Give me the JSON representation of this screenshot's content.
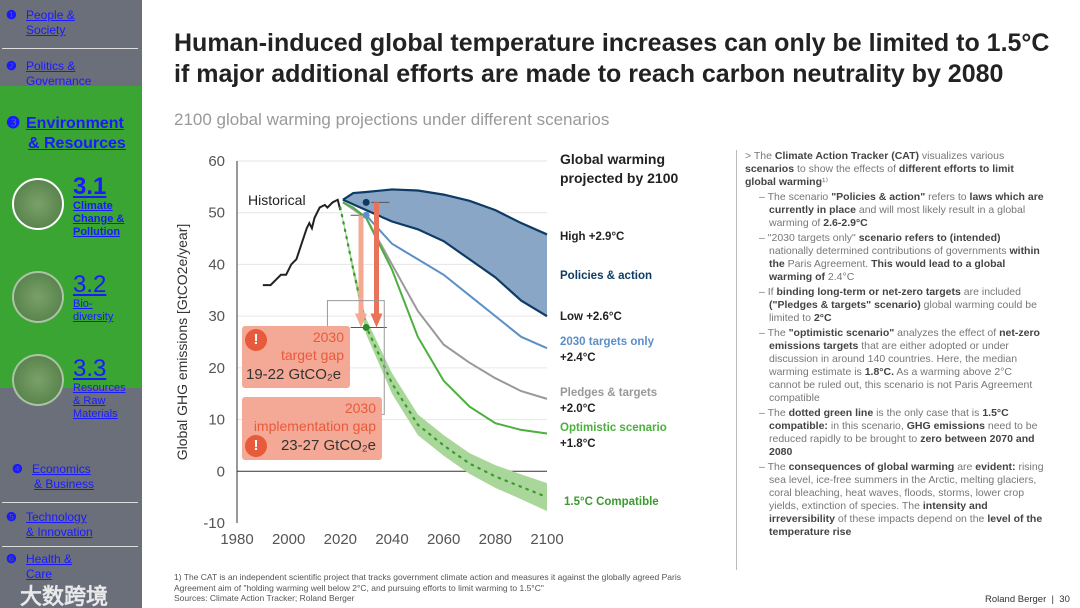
{
  "sidebar": {
    "items": [
      {
        "num": "❶",
        "label1": "People &",
        "label2": "Society"
      },
      {
        "num": "❷",
        "label1": "Politics &",
        "label2": "Governance"
      },
      {
        "num": "❸",
        "label1": "Environment",
        "label2": "& Resources"
      },
      {
        "num": "❹",
        "label1": "Economics",
        "label2": "& Business"
      },
      {
        "num": "❺",
        "label1": "Technology",
        "label2": "& Innovation"
      },
      {
        "num": "❻",
        "label1": "Health &",
        "label2": "Care"
      }
    ],
    "subitems": [
      {
        "num": "3.1",
        "label": "Climate Change & Pollution"
      },
      {
        "num": "3.2",
        "label": "Bio-diversity"
      },
      {
        "num": "3.3",
        "label": "Resources & Raw Materials"
      }
    ],
    "watermark": "大数跨境"
  },
  "title": "Human-induced global temperature increases can only be limited to 1.5°C if major additional efforts are made to reach carbon neutrality by 2080",
  "subtitle": "2100 global warming projections under different scenarios",
  "chart_data": {
    "type": "line",
    "ylabel": "Global GHG emissions [GtCO2e/year]",
    "xlim": [
      1980,
      2100
    ],
    "ylim": [
      -10,
      60
    ],
    "xticks": [
      1980,
      2000,
      2020,
      2040,
      2060,
      2080,
      2100
    ],
    "yticks": [
      60,
      50,
      40,
      30,
      20,
      10,
      0,
      -10
    ],
    "legend_title": "Global warming projected by 2100",
    "historical_label": "Historical",
    "series": [
      {
        "name": "Historical",
        "color": "#222222",
        "x": [
          1990,
          1993,
          1995,
          1997,
          1999,
          2001,
          2003,
          2005,
          2007,
          2008,
          2009,
          2010,
          2012,
          2014,
          2015,
          2017,
          2019,
          2020
        ],
        "y": [
          36,
          36,
          37,
          38,
          38,
          40,
          41,
          44,
          47,
          48,
          47,
          49,
          51,
          51.5,
          51,
          52,
          52.5,
          50.5
        ]
      },
      {
        "name": "High",
        "label": "High  +2.9°C",
        "color": "#0d3b66",
        "x": [
          2021,
          2025,
          2030,
          2040,
          2050,
          2060,
          2070,
          2080,
          2090,
          2100
        ],
        "y": [
          52.5,
          53.8,
          54,
          54.5,
          54.3,
          53.5,
          52.3,
          50.5,
          48,
          45.8
        ]
      },
      {
        "name": "Low",
        "label": "Low  +2.6°C",
        "color": "#0d3b66",
        "x": [
          2021,
          2030,
          2040,
          2050,
          2060,
          2070,
          2080,
          2090,
          2100
        ],
        "y": [
          52.5,
          50.5,
          48.3,
          46.8,
          44.5,
          41,
          37.5,
          33,
          30
        ]
      },
      {
        "name": "2030 targets only",
        "label": "2030 targets only",
        "temp": "+2.4°C",
        "color": "#5b8fc7",
        "x": [
          2030,
          2040,
          2050,
          2060,
          2070,
          2080,
          2090,
          2100
        ],
        "y": [
          49.5,
          44,
          41,
          38,
          34,
          30,
          26,
          23.8
        ]
      },
      {
        "name": "Pledges & targets",
        "label": "Pledges & targets",
        "temp": "+2.0°C",
        "color": "#999999",
        "x": [
          2021,
          2030,
          2040,
          2050,
          2060,
          2070,
          2080,
          2090,
          2100
        ],
        "y": [
          52,
          49,
          40,
          31,
          24.5,
          21,
          18,
          15.5,
          14
        ]
      },
      {
        "name": "Optimistic scenario",
        "label": "Optimistic scenario",
        "temp": "+1.8°C",
        "color": "#4caf3e",
        "x": [
          2021,
          2025,
          2030,
          2040,
          2050,
          2060,
          2070,
          2080,
          2090,
          2100
        ],
        "y": [
          52,
          51,
          49,
          39,
          26,
          17.5,
          12.5,
          9.3,
          8,
          7.3
        ]
      },
      {
        "name": "1.5°C Compatible",
        "label": "1.5°C  Compatible",
        "color": "#3a9a30",
        "x": [
          2020,
          2025,
          2030,
          2040,
          2050,
          2060,
          2070,
          2080,
          2090,
          2100
        ],
        "y": [
          51,
          39,
          28,
          17,
          9,
          5,
          1.5,
          -1,
          -3,
          -5
        ],
        "band": [
          0.3,
          1,
          1.5,
          2,
          2,
          2,
          2,
          2.2,
          2.4,
          2.7
        ]
      }
    ],
    "policies_label": "Policies & action",
    "annotations": [
      {
        "title1": "2030",
        "title2": "target gap",
        "value": "19-22 GtCO₂e"
      },
      {
        "title1": "2030",
        "title2": "implementation gap",
        "value": "23-27 GtCO₂e"
      }
    ]
  },
  "right_text": {
    "intro": [
      "The ",
      "Climate Action Tracker (CAT)",
      " visualizes various ",
      "scenarios",
      " to show the effects of ",
      "different efforts to limit global warming",
      "¹⁾"
    ],
    "bullets": [
      [
        "The scenario ",
        "\"Policies & action\"",
        " refers to ",
        "laws which are currently in place",
        " and will most likely result in a global warming of ",
        "2.6-2.9°C"
      ],
      [
        "\"2030 targets only\"",
        " scenario refers to (intended) ",
        "nationally determined contributions of governments",
        " within the ",
        "Paris Agreement.",
        " This would lead to a global warming of ",
        "2.4°C"
      ],
      [
        "If ",
        "binding long-term or net-zero targets",
        " are included ",
        "(\"Pledges & targets\" scenario)",
        " global warming could be limited to ",
        "2°C"
      ],
      [
        "The ",
        "\"optimistic scenario\"",
        " analyzes the effect of ",
        "net-zero emissions targets",
        " that are either adopted or under discussion in around 140 countries. Here, the median warming estimate is ",
        "1.8°C.",
        " As a warming above 2°C cannot be ruled out, this scenario is not Paris Agreement compatible"
      ],
      [
        "The ",
        "dotted green line",
        " is the only case that is ",
        "1.5°C compatible:",
        " in this scenario, ",
        "GHG emissions",
        " need to be reduced rapidly to be brought to ",
        "zero between 2070 and 2080"
      ],
      [
        "The ",
        "consequences of global warming",
        " are ",
        "evident:",
        " rising sea level, ice-free summers in the Arctic, melting glaciers, coral bleaching, heat waves, floods, storms, lower crop yields, extinction of species. The ",
        "intensity and irreversibility",
        " of these impacts depend on the ",
        "level of the temperature rise"
      ]
    ]
  },
  "footnote": "1) The CAT is an independent scientific project that tracks government climate action and measures it against the globally agreed Paris Agreement aim of \"holding warming well below 2°C, and pursuing efforts to limit warming to 1.5°C\"",
  "sources": "Sources: Climate Action Tracker; Roland Berger",
  "brand": "Roland Berger",
  "page": "30"
}
